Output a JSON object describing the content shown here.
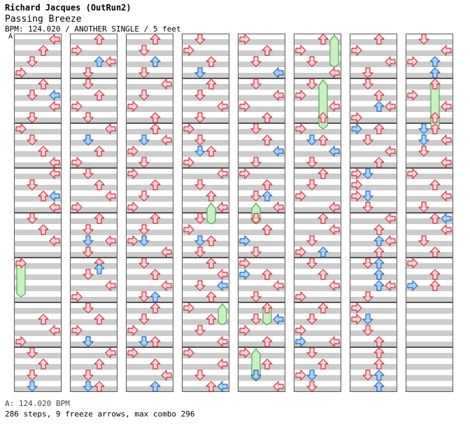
{
  "header": {
    "artist": "Richard Jacques (OutRun2)",
    "title": "Passing Breeze",
    "meta": "BPM: 124.020 / ANOTHER SINGLE / 5 feet"
  },
  "bpm_marker": "A",
  "footer": {
    "bpm_line": "A: 124.020 BPM",
    "stats": "286 steps, 9 freeze arrows, max combo 296"
  },
  "colors": {
    "stripe": "#cccccc",
    "lane_bg": "#ffffff",
    "border": "#555555",
    "red_fill": "#ffd3d8",
    "red_stroke": "#c8303c",
    "blue_fill": "#a6d3ff",
    "blue_stroke": "#2868b8",
    "freeze_fill": "#c8f0c0",
    "freeze_stroke": "#3a9a3a"
  },
  "chart_data": {
    "type": "stepchart",
    "columns": 8,
    "measures_per_column": 8,
    "lanes": [
      "left",
      "down",
      "up",
      "right"
    ],
    "arrows": [
      [
        0,
        0,
        0,
        3
      ],
      [
        0,
        0,
        2,
        2
      ],
      [
        0,
        0,
        4,
        1
      ],
      [
        0,
        0,
        6,
        0
      ],
      [
        0,
        1,
        0,
        2
      ],
      [
        0,
        1,
        2,
        1
      ],
      [
        0,
        1,
        4,
        3
      ],
      [
        0,
        1,
        6,
        1
      ],
      [
        0,
        2,
        0,
        0
      ],
      [
        0,
        2,
        2,
        1
      ],
      [
        0,
        2,
        4,
        2
      ],
      [
        0,
        2,
        6,
        3
      ],
      [
        0,
        3,
        0,
        3
      ],
      [
        0,
        3,
        2,
        1
      ],
      [
        0,
        3,
        4,
        2
      ],
      [
        0,
        3,
        6,
        3
      ],
      [
        0,
        4,
        0,
        1
      ],
      [
        0,
        4,
        2,
        2
      ],
      [
        0,
        4,
        4,
        3
      ],
      [
        0,
        5,
        0,
        0
      ],
      [
        0,
        6,
        2,
        2
      ],
      [
        0,
        6,
        4,
        3
      ],
      [
        0,
        6,
        6,
        0
      ],
      [
        0,
        7,
        0,
        1
      ],
      [
        0,
        7,
        2,
        2
      ],
      [
        0,
        7,
        4,
        1
      ],
      [
        1,
        0,
        0,
        2
      ],
      [
        1,
        0,
        2,
        0
      ],
      [
        1,
        0,
        4,
        3
      ],
      [
        1,
        0,
        6,
        1
      ],
      [
        1,
        1,
        0,
        1
      ],
      [
        1,
        1,
        2,
        2
      ],
      [
        1,
        1,
        4,
        0
      ],
      [
        1,
        1,
        6,
        1
      ],
      [
        1,
        2,
        0,
        3
      ],
      [
        1,
        2,
        2,
        1
      ],
      [
        1,
        2,
        4,
        2
      ],
      [
        1,
        2,
        6,
        0
      ],
      [
        1,
        3,
        0,
        1
      ],
      [
        1,
        3,
        2,
        2
      ],
      [
        1,
        3,
        4,
        3
      ],
      [
        1,
        3,
        6,
        0
      ],
      [
        1,
        4,
        0,
        2
      ],
      [
        1,
        4,
        2,
        1
      ],
      [
        1,
        4,
        4,
        3
      ],
      [
        1,
        4,
        6,
        1
      ],
      [
        1,
        5,
        0,
        2
      ],
      [
        1,
        5,
        2,
        1
      ],
      [
        1,
        5,
        4,
        3
      ],
      [
        1,
        5,
        6,
        0
      ],
      [
        1,
        6,
        0,
        1
      ],
      [
        1,
        6,
        2,
        2
      ],
      [
        1,
        6,
        4,
        0
      ],
      [
        1,
        6,
        6,
        1
      ],
      [
        1,
        7,
        0,
        3
      ],
      [
        1,
        7,
        2,
        2
      ],
      [
        1,
        7,
        4,
        1
      ],
      [
        1,
        7,
        6,
        2
      ],
      [
        2,
        0,
        0,
        2
      ],
      [
        2,
        0,
        2,
        1
      ],
      [
        2,
        0,
        4,
        2
      ],
      [
        2,
        0,
        6,
        1
      ],
      [
        2,
        1,
        0,
        3
      ],
      [
        2,
        1,
        2,
        1
      ],
      [
        2,
        1,
        4,
        0
      ],
      [
        2,
        1,
        6,
        2
      ],
      [
        2,
        2,
        0,
        2
      ],
      [
        2,
        2,
        2,
        3
      ],
      [
        2,
        2,
        4,
        0
      ],
      [
        2,
        2,
        6,
        1
      ],
      [
        2,
        3,
        0,
        0
      ],
      [
        2,
        3,
        2,
        2
      ],
      [
        2,
        3,
        4,
        1
      ],
      [
        2,
        3,
        6,
        0
      ],
      [
        2,
        4,
        0,
        2
      ],
      [
        2,
        4,
        2,
        1
      ],
      [
        2,
        4,
        4,
        0
      ],
      [
        2,
        4,
        6,
        3
      ],
      [
        2,
        5,
        0,
        1
      ],
      [
        2,
        5,
        2,
        2
      ],
      [
        2,
        5,
        4,
        3
      ],
      [
        2,
        5,
        6,
        1
      ],
      [
        2,
        6,
        0,
        2
      ],
      [
        2,
        6,
        2,
        1
      ],
      [
        2,
        6,
        4,
        0
      ],
      [
        2,
        6,
        6,
        2
      ],
      [
        2,
        7,
        0,
        0
      ],
      [
        2,
        7,
        2,
        2
      ],
      [
        2,
        7,
        4,
        3
      ],
      [
        2,
        7,
        6,
        2
      ],
      [
        3,
        0,
        0,
        1
      ],
      [
        3,
        0,
        2,
        0
      ],
      [
        3,
        0,
        4,
        2
      ],
      [
        3,
        0,
        6,
        1
      ],
      [
        3,
        1,
        0,
        2
      ],
      [
        3,
        1,
        2,
        1
      ],
      [
        3,
        1,
        4,
        3
      ],
      [
        3,
        1,
        6,
        1
      ],
      [
        3,
        2,
        0,
        0
      ],
      [
        3,
        2,
        2,
        1
      ],
      [
        3,
        2,
        4,
        2
      ],
      [
        3,
        2,
        6,
        0
      ],
      [
        3,
        3,
        0,
        3
      ],
      [
        3,
        3,
        2,
        1
      ],
      [
        3,
        3,
        4,
        2
      ],
      [
        3,
        3,
        6,
        3
      ],
      [
        3,
        4,
        0,
        1
      ],
      [
        3,
        4,
        2,
        0
      ],
      [
        3,
        4,
        4,
        2
      ],
      [
        3,
        4,
        6,
        1
      ],
      [
        3,
        5,
        0,
        2
      ],
      [
        3,
        5,
        2,
        3
      ],
      [
        3,
        5,
        4,
        1
      ],
      [
        3,
        5,
        6,
        2
      ],
      [
        3,
        6,
        0,
        0
      ],
      [
        3,
        6,
        2,
        2
      ],
      [
        3,
        6,
        4,
        1
      ],
      [
        3,
        6,
        6,
        3
      ],
      [
        3,
        7,
        0,
        0
      ],
      [
        3,
        7,
        2,
        3
      ],
      [
        3,
        7,
        4,
        1
      ],
      [
        3,
        7,
        6,
        2
      ],
      [
        4,
        0,
        0,
        0
      ],
      [
        4,
        0,
        2,
        2
      ],
      [
        4,
        0,
        4,
        1
      ],
      [
        4,
        0,
        6,
        3
      ],
      [
        4,
        1,
        0,
        1
      ],
      [
        4,
        1,
        2,
        3
      ],
      [
        4,
        1,
        4,
        0
      ],
      [
        4,
        1,
        6,
        2
      ],
      [
        4,
        2,
        0,
        1
      ],
      [
        4,
        2,
        2,
        2
      ],
      [
        4,
        2,
        4,
        3
      ],
      [
        4,
        2,
        6,
        1
      ],
      [
        4,
        3,
        0,
        0
      ],
      [
        4,
        3,
        2,
        2
      ],
      [
        4,
        3,
        4,
        1
      ],
      [
        4,
        3,
        6,
        3
      ],
      [
        4,
        4,
        0,
        1
      ],
      [
        4,
        4,
        2,
        2
      ],
      [
        4,
        4,
        4,
        0
      ],
      [
        4,
        4,
        6,
        1
      ],
      [
        4,
        5,
        0,
        0
      ],
      [
        4,
        5,
        2,
        2
      ],
      [
        4,
        5,
        4,
        3
      ],
      [
        4,
        5,
        6,
        1
      ],
      [
        4,
        6,
        0,
        2
      ],
      [
        4,
        6,
        2,
        1
      ],
      [
        4,
        6,
        4,
        0
      ],
      [
        4,
        6,
        6,
        2
      ],
      [
        4,
        7,
        0,
        0
      ],
      [
        4,
        7,
        2,
        2
      ],
      [
        4,
        7,
        4,
        1
      ],
      [
        4,
        7,
        6,
        3
      ],
      [
        5,
        0,
        0,
        2
      ],
      [
        5,
        0,
        2,
        0
      ],
      [
        5,
        0,
        4,
        1
      ],
      [
        5,
        0,
        6,
        3
      ],
      [
        5,
        1,
        0,
        1
      ],
      [
        5,
        1,
        2,
        0
      ],
      [
        5,
        1,
        4,
        3
      ],
      [
        5,
        1,
        6,
        2
      ],
      [
        5,
        2,
        0,
        0
      ],
      [
        5,
        2,
        2,
        2
      ],
      [
        5,
        2,
        4,
        3
      ],
      [
        5,
        2,
        6,
        1
      ],
      [
        5,
        3,
        0,
        2
      ],
      [
        5,
        3,
        2,
        1
      ],
      [
        5,
        3,
        4,
        0
      ],
      [
        5,
        3,
        6,
        3
      ],
      [
        5,
        4,
        0,
        2
      ],
      [
        5,
        4,
        2,
        3
      ],
      [
        5,
        4,
        4,
        1
      ],
      [
        5,
        4,
        6,
        0
      ],
      [
        5,
        5,
        0,
        1
      ],
      [
        5,
        5,
        2,
        2
      ],
      [
        5,
        5,
        4,
        3
      ],
      [
        5,
        5,
        6,
        0
      ],
      [
        5,
        6,
        0,
        2
      ],
      [
        5,
        6,
        2,
        1
      ],
      [
        5,
        6,
        4,
        0
      ],
      [
        5,
        6,
        6,
        3
      ],
      [
        5,
        7,
        0,
        1
      ],
      [
        5,
        7,
        2,
        2
      ],
      [
        5,
        7,
        4,
        0
      ],
      [
        5,
        7,
        6,
        1
      ],
      [
        6,
        0,
        0,
        2
      ],
      [
        6,
        0,
        2,
        0
      ],
      [
        6,
        0,
        4,
        3
      ],
      [
        6,
        0,
        6,
        1
      ],
      [
        6,
        1,
        0,
        1
      ],
      [
        6,
        1,
        2,
        2
      ],
      [
        6,
        1,
        4,
        3
      ],
      [
        6,
        1,
        6,
        0
      ],
      [
        6,
        2,
        0,
        2
      ],
      [
        6,
        2,
        2,
        1
      ],
      [
        6,
        2,
        4,
        3
      ],
      [
        6,
        2,
        6,
        2
      ],
      [
        6,
        3,
        0,
        0
      ],
      [
        6,
        3,
        2,
        0
      ],
      [
        6,
        3,
        4,
        0
      ],
      [
        6,
        3,
        6,
        1
      ],
      [
        6,
        4,
        0,
        3
      ],
      [
        6,
        4,
        2,
        2
      ],
      [
        6,
        4,
        4,
        3
      ],
      [
        6,
        4,
        6,
        2
      ],
      [
        6,
        5,
        0,
        1
      ],
      [
        6,
        5,
        2,
        2
      ],
      [
        6,
        5,
        4,
        3
      ],
      [
        6,
        5,
        6,
        1
      ],
      [
        6,
        6,
        0,
        0
      ],
      [
        6,
        6,
        2,
        0
      ],
      [
        6,
        6,
        4,
        1
      ],
      [
        6,
        6,
        6,
        2
      ],
      [
        6,
        7,
        0,
        2
      ],
      [
        6,
        7,
        2,
        2
      ],
      [
        6,
        7,
        4,
        1
      ],
      [
        6,
        7,
        6,
        2
      ],
      [
        7,
        0,
        0,
        1
      ],
      [
        7,
        0,
        2,
        3
      ],
      [
        7,
        0,
        4,
        0
      ],
      [
        7,
        0,
        6,
        2
      ],
      [
        7,
        1,
        0,
        2
      ],
      [
        7,
        1,
        2,
        0
      ],
      [
        7,
        1,
        4,
        3
      ],
      [
        7,
        1,
        6,
        2
      ],
      [
        7,
        2,
        0,
        2
      ],
      [
        7,
        2,
        2,
        3
      ],
      [
        7,
        2,
        4,
        1
      ],
      [
        7,
        2,
        6,
        3
      ],
      [
        7,
        3,
        0,
        0
      ],
      [
        7,
        3,
        2,
        2
      ],
      [
        7,
        3,
        4,
        3
      ],
      [
        7,
        3,
        6,
        1
      ],
      [
        7,
        4,
        0,
        2
      ],
      [
        7,
        4,
        2,
        3
      ],
      [
        7,
        4,
        4,
        1
      ],
      [
        7,
        4,
        6,
        2
      ],
      [
        7,
        5,
        0,
        0
      ],
      [
        7,
        5,
        2,
        2
      ],
      [
        7,
        5,
        4,
        2
      ]
    ],
    "blue_arrows": [
      [
        0,
        1,
        2,
        3
      ],
      [
        0,
        3,
        4,
        3
      ],
      [
        0,
        7,
        6,
        1
      ],
      [
        1,
        0,
        4,
        2
      ],
      [
        1,
        2,
        2,
        1
      ],
      [
        1,
        4,
        4,
        1
      ],
      [
        1,
        5,
        1,
        2
      ],
      [
        1,
        6,
        6,
        1
      ],
      [
        1,
        7,
        6,
        1
      ],
      [
        2,
        0,
        4,
        2
      ],
      [
        2,
        2,
        2,
        1
      ],
      [
        2,
        4,
        4,
        1
      ],
      [
        2,
        5,
        6,
        2
      ],
      [
        2,
        6,
        6,
        1
      ],
      [
        2,
        7,
        6,
        2
      ],
      [
        3,
        0,
        6,
        1
      ],
      [
        3,
        2,
        4,
        1
      ],
      [
        3,
        4,
        4,
        1
      ],
      [
        3,
        5,
        4,
        3
      ],
      [
        3,
        7,
        6,
        3
      ],
      [
        4,
        0,
        6,
        3
      ],
      [
        4,
        2,
        4,
        3
      ],
      [
        4,
        3,
        4,
        2
      ],
      [
        4,
        4,
        4,
        0
      ],
      [
        4,
        5,
        2,
        0
      ],
      [
        4,
        6,
        2,
        3
      ],
      [
        4,
        7,
        4,
        1
      ],
      [
        5,
        2,
        2,
        1
      ],
      [
        5,
        2,
        4,
        3
      ],
      [
        5,
        4,
        6,
        2
      ],
      [
        5,
        6,
        6,
        0
      ],
      [
        5,
        7,
        4,
        1
      ],
      [
        6,
        1,
        4,
        2
      ],
      [
        6,
        2,
        0,
        0
      ],
      [
        6,
        3,
        0,
        1
      ],
      [
        6,
        3,
        4,
        1
      ],
      [
        6,
        4,
        4,
        2
      ],
      [
        6,
        5,
        0,
        2
      ],
      [
        6,
        5,
        2,
        2
      ],
      [
        6,
        5,
        4,
        2
      ],
      [
        6,
        6,
        2,
        1
      ],
      [
        6,
        7,
        4,
        2
      ],
      [
        6,
        7,
        6,
        2
      ],
      [
        7,
        0,
        4,
        2
      ],
      [
        7,
        0,
        6,
        2
      ],
      [
        7,
        2,
        0,
        1
      ],
      [
        7,
        2,
        2,
        1
      ],
      [
        7,
        4,
        0,
        3
      ],
      [
        7,
        5,
        4,
        0
      ]
    ],
    "freezes": [
      [
        0,
        5,
        0,
        0,
        5
      ],
      [
        3,
        3,
        6,
        2,
        2
      ],
      [
        4,
        3,
        6,
        1,
        2
      ],
      [
        5,
        0,
        0,
        3,
        4
      ],
      [
        5,
        1,
        0,
        2,
        7
      ],
      [
        7,
        1,
        0,
        2,
        7
      ],
      [
        3,
        6,
        0,
        3,
        2
      ],
      [
        4,
        6,
        0,
        2,
        2
      ],
      [
        4,
        7,
        0,
        1,
        4
      ]
    ]
  }
}
